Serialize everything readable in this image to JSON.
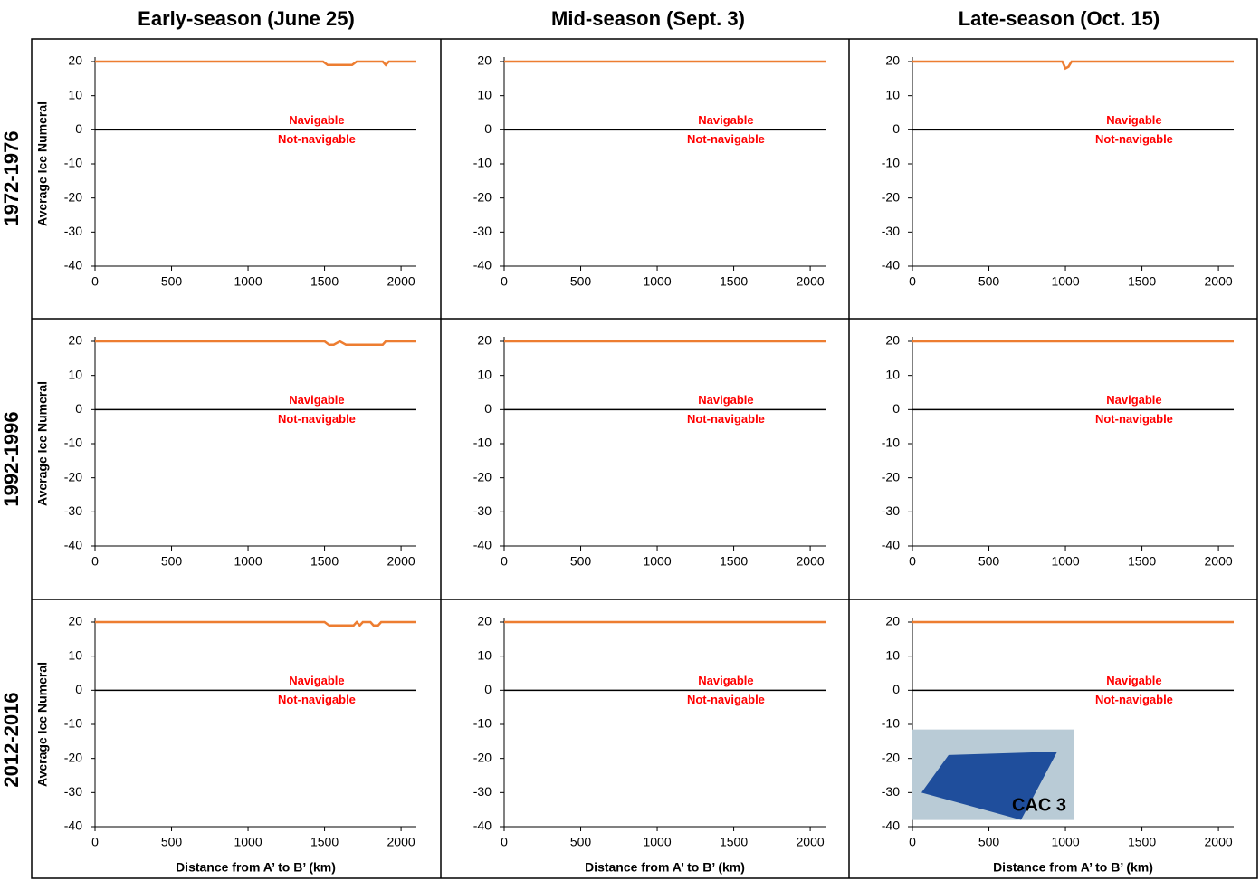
{
  "column_titles": [
    "Early-season (June 25)",
    "Mid-season (Sept. 3)",
    "Late-season (Oct. 15)"
  ],
  "row_titles": [
    "1972-1976",
    "1992-1996",
    "2012-2016"
  ],
  "chart_data": [
    {
      "type": "line",
      "ylabel": "Average Ice Numeral",
      "x": [
        0,
        1490,
        1520,
        1680,
        1710,
        1880,
        1900,
        1920,
        2100
      ],
      "series": [
        {
          "color": "#ed7d31",
          "values": [
            20,
            20,
            19,
            19,
            20,
            20,
            19,
            20,
            20
          ]
        }
      ],
      "reference_line": {
        "value": 0,
        "color": "#000000"
      },
      "annotations": [
        "Navigable",
        "Not-navigable"
      ],
      "xlim": [
        0,
        2100
      ],
      "ylim": [
        -40,
        20
      ],
      "xticks": [
        0,
        500,
        1000,
        1500,
        2000
      ],
      "yticks": [
        -40,
        -30,
        -20,
        -10,
        0,
        10,
        20
      ]
    },
    {
      "type": "line",
      "x": [
        0,
        2100
      ],
      "series": [
        {
          "color": "#ed7d31",
          "values": [
            20,
            20
          ]
        }
      ],
      "reference_line": {
        "value": 0,
        "color": "#000000"
      },
      "annotations": [
        "Navigable",
        "Not-navigable"
      ],
      "xlim": [
        0,
        2100
      ],
      "ylim": [
        -40,
        20
      ],
      "xticks": [
        0,
        500,
        1000,
        1500,
        2000
      ],
      "yticks": [
        -40,
        -30,
        -20,
        -10,
        0,
        10,
        20
      ]
    },
    {
      "type": "line",
      "x": [
        0,
        980,
        1000,
        1020,
        1040,
        2100
      ],
      "series": [
        {
          "color": "#ed7d31",
          "values": [
            20,
            20,
            18,
            18.5,
            20,
            20
          ]
        }
      ],
      "reference_line": {
        "value": 0,
        "color": "#000000"
      },
      "annotations": [
        "Navigable",
        "Not-navigable"
      ],
      "xlim": [
        0,
        2100
      ],
      "ylim": [
        -40,
        20
      ],
      "xticks": [
        0,
        500,
        1000,
        1500,
        2000
      ],
      "yticks": [
        -40,
        -30,
        -20,
        -10,
        0,
        10,
        20
      ]
    },
    {
      "type": "line",
      "ylabel": "Average Ice Numeral",
      "x": [
        0,
        1500,
        1530,
        1560,
        1600,
        1640,
        1880,
        1900,
        2100
      ],
      "series": [
        {
          "color": "#ed7d31",
          "values": [
            20,
            20,
            19,
            19,
            20,
            19,
            19,
            20,
            20
          ]
        }
      ],
      "reference_line": {
        "value": 0,
        "color": "#000000"
      },
      "annotations": [
        "Navigable",
        "Not-navigable"
      ],
      "xlim": [
        0,
        2100
      ],
      "ylim": [
        -40,
        20
      ],
      "xticks": [
        0,
        500,
        1000,
        1500,
        2000
      ],
      "yticks": [
        -40,
        -30,
        -20,
        -10,
        0,
        10,
        20
      ]
    },
    {
      "type": "line",
      "x": [
        0,
        2100
      ],
      "series": [
        {
          "color": "#ed7d31",
          "values": [
            20,
            20
          ]
        }
      ],
      "reference_line": {
        "value": 0,
        "color": "#000000"
      },
      "annotations": [
        "Navigable",
        "Not-navigable"
      ],
      "xlim": [
        0,
        2100
      ],
      "ylim": [
        -40,
        20
      ],
      "xticks": [
        0,
        500,
        1000,
        1500,
        2000
      ],
      "yticks": [
        -40,
        -30,
        -20,
        -10,
        0,
        10,
        20
      ]
    },
    {
      "type": "line",
      "x": [
        0,
        2100
      ],
      "series": [
        {
          "color": "#ed7d31",
          "values": [
            20,
            20
          ]
        }
      ],
      "reference_line": {
        "value": 0,
        "color": "#000000"
      },
      "annotations": [
        "Navigable",
        "Not-navigable"
      ],
      "xlim": [
        0,
        2100
      ],
      "ylim": [
        -40,
        20
      ],
      "xticks": [
        0,
        500,
        1000,
        1500,
        2000
      ],
      "yticks": [
        -40,
        -30,
        -20,
        -10,
        0,
        10,
        20
      ]
    },
    {
      "type": "line",
      "ylabel": "Average Ice Numeral",
      "xlabel": "Distance from A’ to B’ (km)",
      "x": [
        0,
        1500,
        1530,
        1690,
        1710,
        1730,
        1750,
        1800,
        1820,
        1850,
        1870,
        2100
      ],
      "series": [
        {
          "color": "#ed7d31",
          "values": [
            20,
            20,
            19,
            19,
            20,
            19,
            20,
            20,
            19,
            19,
            20,
            20
          ]
        }
      ],
      "reference_line": {
        "value": 0,
        "color": "#000000"
      },
      "annotations": [
        "Navigable",
        "Not-navigable"
      ],
      "xlim": [
        0,
        2100
      ],
      "ylim": [
        -40,
        20
      ],
      "xticks": [
        0,
        500,
        1000,
        1500,
        2000
      ],
      "yticks": [
        -40,
        -30,
        -20,
        -10,
        0,
        10,
        20
      ]
    },
    {
      "type": "line",
      "xlabel": "Distance from A’ to B’ (km)",
      "x": [
        0,
        2100
      ],
      "series": [
        {
          "color": "#ed7d31",
          "values": [
            20,
            20
          ]
        }
      ],
      "reference_line": {
        "value": 0,
        "color": "#000000"
      },
      "annotations": [
        "Navigable",
        "Not-navigable"
      ],
      "xlim": [
        0,
        2100
      ],
      "ylim": [
        -40,
        20
      ],
      "xticks": [
        0,
        500,
        1000,
        1500,
        2000
      ],
      "yticks": [
        -40,
        -30,
        -20,
        -10,
        0,
        10,
        20
      ]
    },
    {
      "type": "line",
      "xlabel": "Distance from A’ to B’ (km)",
      "inset_label": "CAC 3",
      "x": [
        0,
        2100
      ],
      "series": [
        {
          "color": "#ed7d31",
          "values": [
            20,
            20
          ]
        }
      ],
      "reference_line": {
        "value": 0,
        "color": "#000000"
      },
      "annotations": [
        "Navigable",
        "Not-navigable"
      ],
      "xlim": [
        0,
        2100
      ],
      "ylim": [
        -40,
        20
      ],
      "xticks": [
        0,
        500,
        1000,
        1500,
        2000
      ],
      "yticks": [
        -40,
        -30,
        -20,
        -10,
        0,
        10,
        20
      ]
    }
  ]
}
